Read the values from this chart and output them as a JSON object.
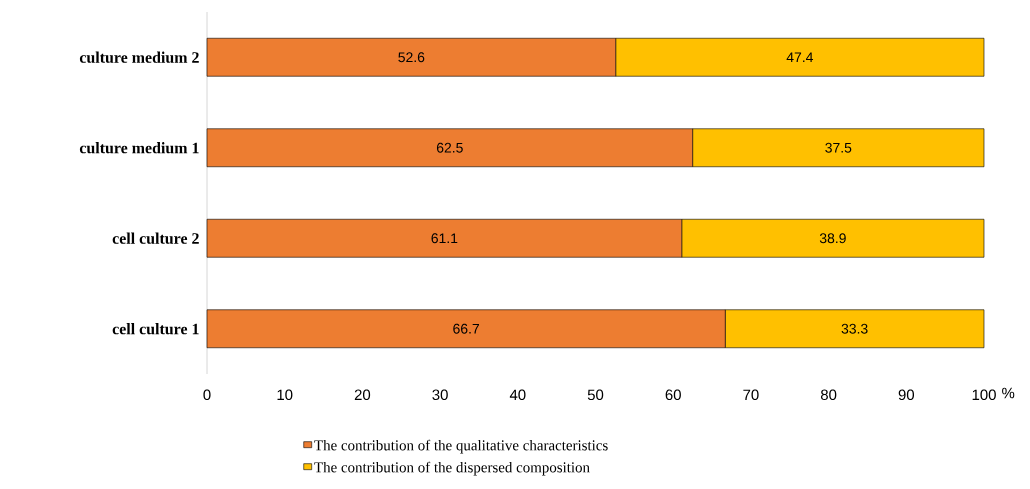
{
  "chart_data": {
    "type": "bar",
    "orientation": "horizontal",
    "stacked": true,
    "xlabel": "%",
    "categories": [
      "culture medium 2",
      "culture medium 1",
      "cell culture 2",
      "cell culture 1"
    ],
    "series": [
      {
        "name": "The contribution of the qualitative characteristics",
        "color": "#ed7d31",
        "values": [
          52.6,
          62.5,
          61.1,
          66.7
        ]
      },
      {
        "name": "The contribution of the dispersed composition",
        "color": "#ffc000",
        "values": [
          47.4,
          37.5,
          38.9,
          33.3
        ]
      }
    ],
    "xlim": [
      0,
      100
    ],
    "xticks": [
      0,
      10,
      20,
      30,
      40,
      50,
      60,
      70,
      80,
      90,
      100
    ],
    "data_labels": true,
    "legend": "bottom",
    "grid": false
  }
}
